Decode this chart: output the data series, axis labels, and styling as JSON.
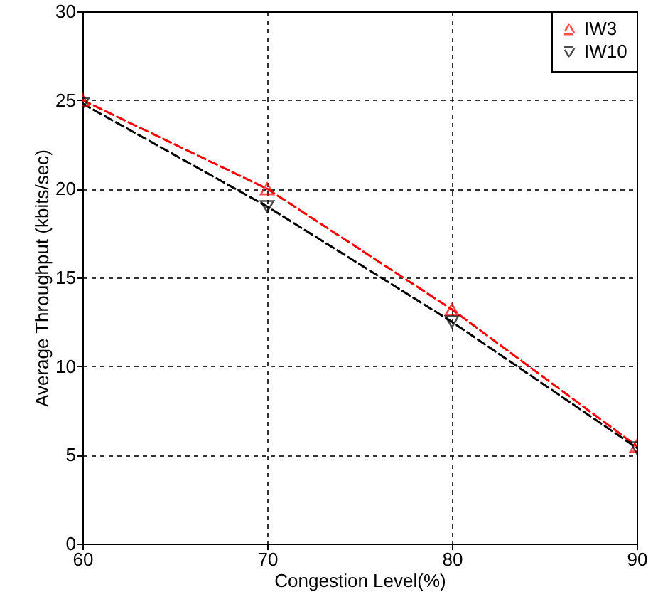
{
  "chart_data": {
    "type": "line",
    "xlabel": "Congestion Level(%)",
    "ylabel": "Average Throughput (kbits/sec)",
    "x": [
      60,
      70,
      80,
      90
    ],
    "xlim": [
      60,
      90
    ],
    "xticks": [
      60,
      70,
      80,
      90
    ],
    "ylim": [
      0,
      30
    ],
    "yticks": [
      0,
      5,
      10,
      15,
      20,
      25,
      30
    ],
    "grid": true,
    "legend": "top right",
    "series": [
      {
        "name": "IW3",
        "color": "#ff0000",
        "line_style": "dashed",
        "marker": "triangle",
        "values": [
          25,
          20,
          13.2,
          5.5
        ]
      },
      {
        "name": "IW10",
        "color": "#000000",
        "line_style": "dashed",
        "marker": "triangle-down",
        "values": [
          24.8,
          19,
          12.5,
          5.4
        ]
      }
    ]
  }
}
